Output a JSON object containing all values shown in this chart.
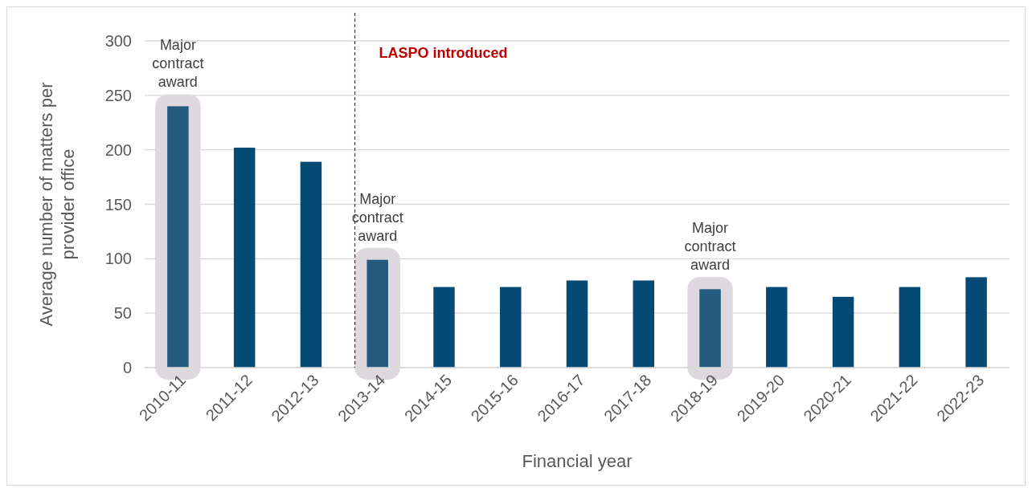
{
  "chart_data": {
    "type": "bar",
    "xlabel": "Financial year",
    "ylabel": "Average number of matters per provider office",
    "categories": [
      "2010-11",
      "2011-12",
      "2012-13",
      "2013-14",
      "2014-15",
      "2015-16",
      "2016-17",
      "2017-18",
      "2018-19",
      "2019-20",
      "2020-21",
      "2021-22",
      "2022-23"
    ],
    "values": [
      240,
      202,
      189,
      99,
      74,
      74,
      80,
      80,
      72,
      74,
      65,
      74,
      83
    ],
    "colors": [
      "#245a7e",
      "#054a75",
      "#054a75",
      "#245a7e",
      "#054a75",
      "#054a75",
      "#054a75",
      "#054a75",
      "#245a7e",
      "#054a75",
      "#054a75",
      "#054a75",
      "#054a75"
    ],
    "ylim": [
      0,
      300
    ],
    "yticks": [
      0,
      50,
      100,
      150,
      200,
      250,
      300
    ],
    "grid": "y",
    "ref_lines": [
      {
        "axis": "x",
        "value": "2013-14",
        "label": "LASPO introduced",
        "color": "#c00000",
        "line_style": "dashed"
      }
    ],
    "annotations": [
      {
        "text": "Major contract award",
        "x": "2010-11",
        "y": 240
      },
      {
        "text": "Major contract award",
        "x": "2013-14",
        "y": 99
      },
      {
        "text": "Major contract award",
        "x": "2018-19",
        "y": 72
      }
    ]
  }
}
